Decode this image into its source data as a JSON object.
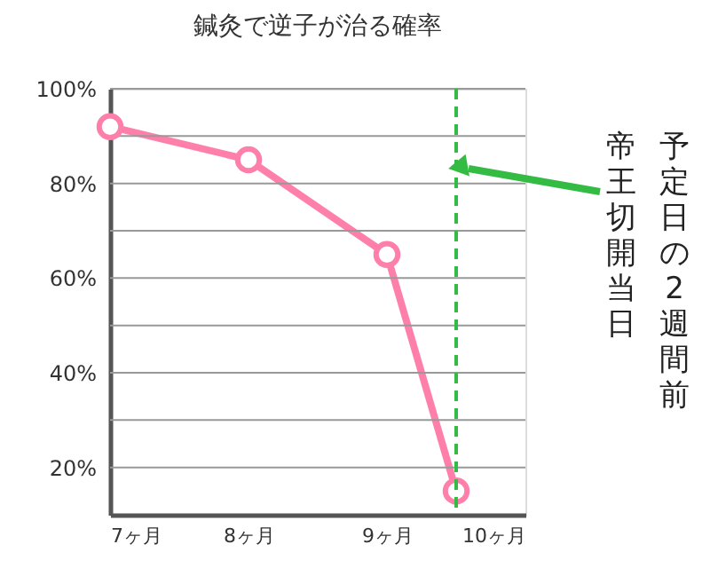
{
  "chart_data": {
    "type": "line",
    "title": "鍼灸で逆子が治る確率",
    "x": [
      7,
      8,
      9,
      9.5
    ],
    "series": [
      {
        "color": "#ff7fab",
        "values": [
          92,
          85,
          65,
          15
        ]
      }
    ],
    "xlim": [
      7,
      10
    ],
    "xticks": [
      {
        "value": 7,
        "label": "7ヶ月"
      },
      {
        "value": 8,
        "label": "8ヶ月"
      },
      {
        "value": 9,
        "label": "9ヶ月"
      },
      {
        "value": 10,
        "label": "10ヶ月"
      }
    ],
    "ylim": [
      10,
      100
    ],
    "yticks": [
      {
        "value": 20,
        "label": "20%"
      },
      {
        "value": 30,
        "label": null
      },
      {
        "value": 40,
        "label": "40%"
      },
      {
        "value": 50,
        "label": null
      },
      {
        "value": 60,
        "label": "60%"
      },
      {
        "value": 70,
        "label": null
      },
      {
        "value": 80,
        "label": "80%"
      },
      {
        "value": 90,
        "label": null
      },
      {
        "value": 100,
        "label": "100%"
      }
    ],
    "grid": "y",
    "marker": "circle",
    "line_style": "solid",
    "ref_lines": [
      {
        "axis": "x",
        "value": 9.5,
        "label": null,
        "color": "#33bb44",
        "line_style": "dashed"
      }
    ],
    "annotations": [
      "予定日の2週間前",
      "帝王切開当日"
    ]
  }
}
